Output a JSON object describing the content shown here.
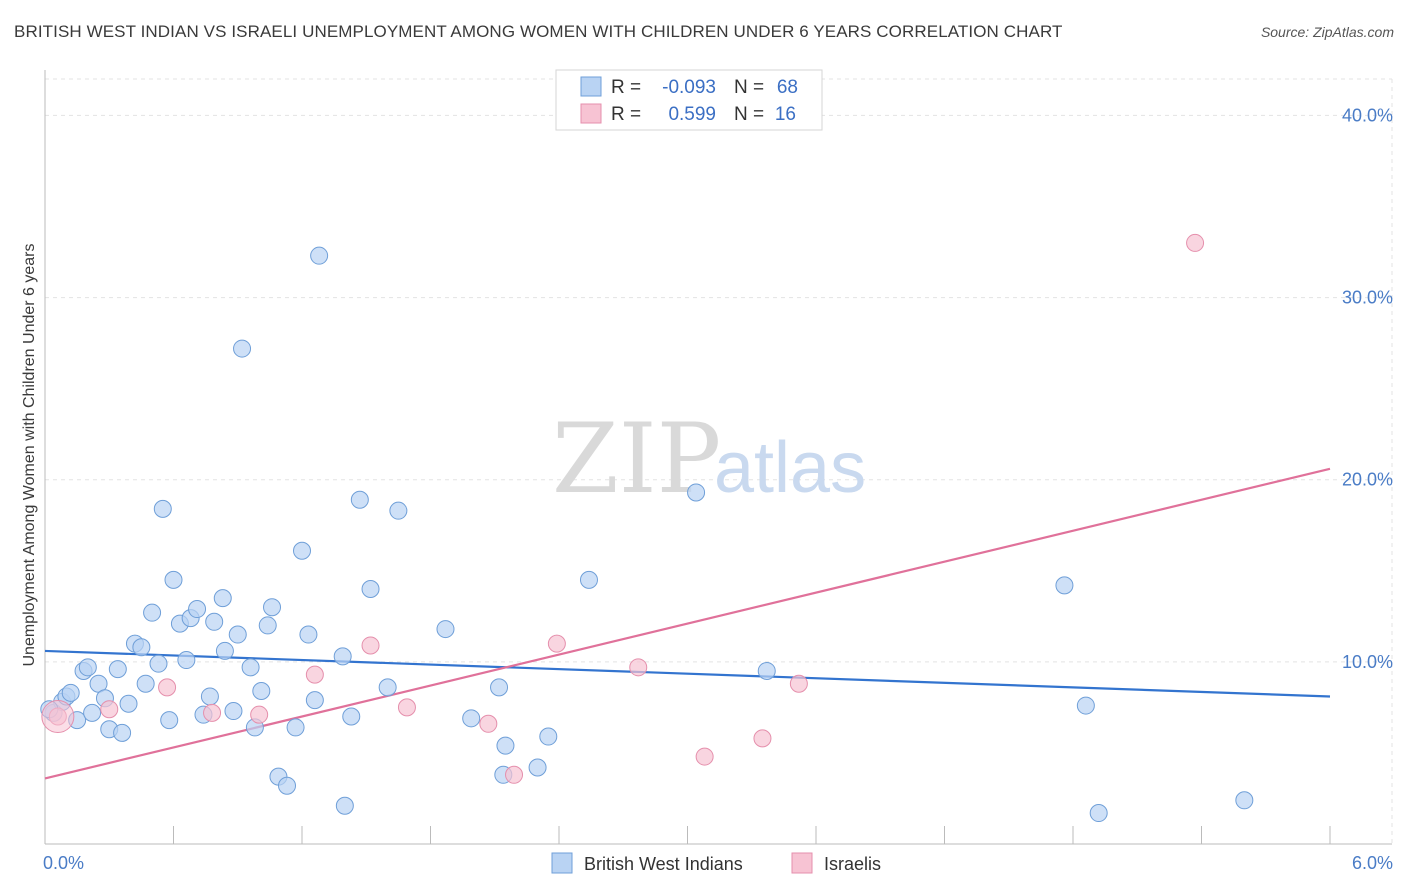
{
  "title": "BRITISH WEST INDIAN VS ISRAELI UNEMPLOYMENT AMONG WOMEN WITH CHILDREN UNDER 6 YEARS CORRELATION CHART",
  "source": "Source: ZipAtlas.com",
  "watermark": {
    "zip": "ZIP",
    "atlas": "atlas"
  },
  "colors": {
    "blue_fill": "#b9d3f3",
    "blue_stroke": "#6f9fd8",
    "blue_line": "#3374cf",
    "pink_fill": "#f7c3d3",
    "pink_stroke": "#e58fac",
    "pink_line": "#e0719a",
    "tick_text": "#4a7cc6",
    "grid": "#e3e3e3"
  },
  "stats": [
    {
      "swatch": "blue",
      "r_label": "R =",
      "r_value": "-0.093",
      "n_label": "N =",
      "n_value": "68"
    },
    {
      "swatch": "pink",
      "r_label": "R =",
      "r_value": "0.599",
      "n_label": "N =",
      "n_value": "16"
    }
  ],
  "chart_data": {
    "type": "scatter",
    "title": "BRITISH WEST INDIAN VS ISRAELI UNEMPLOYMENT AMONG WOMEN WITH CHILDREN UNDER 6 YEARS CORRELATION CHART",
    "xlabel": "",
    "ylabel": "Unemployment Among Women with Children Under 6 years",
    "xlim": [
      0,
      6
    ],
    "ylim": [
      0,
      42
    ],
    "x_ticks": [
      {
        "value": 0,
        "label": "0.0%"
      },
      {
        "value": 6,
        "label": "6.0%"
      }
    ],
    "y_ticks": [
      {
        "value": 10,
        "label": "10.0%"
      },
      {
        "value": 20,
        "label": "20.0%"
      },
      {
        "value": 30,
        "label": "30.0%"
      },
      {
        "value": 40,
        "label": "40.0%"
      }
    ],
    "grid": true,
    "legend_position": "bottom-center",
    "series": [
      {
        "name": "British West Indians",
        "color": "blue",
        "trend": [
          [
            0,
            10.6
          ],
          [
            6,
            8.1
          ]
        ],
        "points": [
          [
            0.04,
            7.2
          ],
          [
            0.08,
            7.8
          ],
          [
            0.1,
            8.1
          ],
          [
            0.12,
            8.3
          ],
          [
            0.15,
            6.8
          ],
          [
            0.18,
            9.5
          ],
          [
            0.2,
            9.7
          ],
          [
            0.22,
            7.2
          ],
          [
            0.25,
            8.8
          ],
          [
            0.28,
            8.0
          ],
          [
            0.3,
            6.3
          ],
          [
            0.34,
            9.6
          ],
          [
            0.36,
            6.1
          ],
          [
            0.39,
            7.7
          ],
          [
            0.42,
            11.0
          ],
          [
            0.45,
            10.8
          ],
          [
            0.47,
            8.8
          ],
          [
            0.5,
            12.7
          ],
          [
            0.53,
            9.9
          ],
          [
            0.55,
            18.4
          ],
          [
            0.58,
            6.8
          ],
          [
            0.6,
            14.5
          ],
          [
            0.63,
            12.1
          ],
          [
            0.66,
            10.1
          ],
          [
            0.68,
            12.4
          ],
          [
            0.71,
            12.9
          ],
          [
            0.74,
            7.1
          ],
          [
            0.77,
            8.1
          ],
          [
            0.79,
            12.2
          ],
          [
            0.83,
            13.5
          ],
          [
            0.84,
            10.6
          ],
          [
            0.88,
            7.3
          ],
          [
            0.9,
            11.5
          ],
          [
            0.92,
            27.2
          ],
          [
            0.96,
            9.7
          ],
          [
            0.98,
            6.4
          ],
          [
            1.01,
            8.4
          ],
          [
            1.04,
            12.0
          ],
          [
            1.06,
            13.0
          ],
          [
            1.09,
            3.7
          ],
          [
            1.13,
            3.2
          ],
          [
            1.17,
            6.4
          ],
          [
            1.2,
            16.1
          ],
          [
            1.23,
            11.5
          ],
          [
            1.26,
            7.9
          ],
          [
            1.28,
            32.3
          ],
          [
            1.39,
            10.3
          ],
          [
            1.4,
            2.1
          ],
          [
            1.43,
            7.0
          ],
          [
            1.47,
            18.9
          ],
          [
            1.52,
            14.0
          ],
          [
            1.65,
            18.3
          ],
          [
            1.6,
            8.6
          ],
          [
            1.87,
            11.8
          ],
          [
            1.99,
            6.9
          ],
          [
            2.12,
            8.6
          ],
          [
            2.14,
            3.8
          ],
          [
            2.15,
            5.4
          ],
          [
            2.3,
            4.2
          ],
          [
            2.35,
            5.9
          ],
          [
            2.54,
            14.5
          ],
          [
            3.04,
            19.3
          ],
          [
            3.37,
            9.5
          ],
          [
            4.76,
            14.2
          ],
          [
            4.86,
            7.6
          ],
          [
            4.92,
            1.7
          ],
          [
            5.6,
            2.4
          ],
          [
            0.02,
            7.4
          ]
        ]
      },
      {
        "name": "Israelis",
        "color": "pink",
        "trend": [
          [
            0,
            3.6
          ],
          [
            6,
            20.6
          ]
        ],
        "points": [
          [
            0.06,
            7.0
          ],
          [
            0.3,
            7.4
          ],
          [
            0.57,
            8.6
          ],
          [
            0.78,
            7.2
          ],
          [
            1.0,
            7.1
          ],
          [
            1.26,
            9.3
          ],
          [
            1.52,
            10.9
          ],
          [
            1.69,
            7.5
          ],
          [
            2.07,
            6.6
          ],
          [
            2.19,
            3.8
          ],
          [
            2.39,
            11.0
          ],
          [
            2.77,
            9.7
          ],
          [
            3.08,
            4.8
          ],
          [
            3.35,
            5.8
          ],
          [
            3.52,
            8.8
          ],
          [
            5.37,
            33.0
          ]
        ]
      }
    ]
  }
}
